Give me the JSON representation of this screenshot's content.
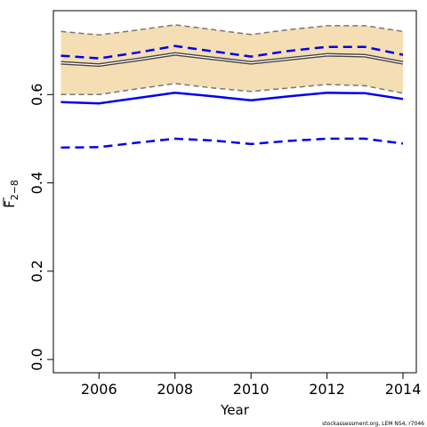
{
  "chart_data": {
    "type": "line",
    "xlabel": "Year",
    "ylabel": {
      "main": "F",
      "sub": "2−8"
    },
    "xlim": [
      2004.8,
      2014.35
    ],
    "ylim": [
      -0.03,
      0.79
    ],
    "x_ticks": [
      2006,
      2008,
      2010,
      2012,
      2014
    ],
    "x_tick_labels": [
      "2006",
      "2008",
      "2010",
      "2012",
      "2014"
    ],
    "y_ticks": [
      0.0,
      0.2,
      0.4,
      0.6
    ],
    "y_tick_labels": [
      "0.0",
      "0.2",
      "0.4",
      "0.6"
    ],
    "grid": false,
    "x": [
      2005,
      2006,
      2007,
      2008,
      2009,
      2010,
      2011,
      2012,
      2013,
      2014
    ],
    "band": {
      "color": "#f5deb3",
      "border_color": "#777777",
      "upper": [
        0.743,
        0.735,
        0.746,
        0.758,
        0.747,
        0.736,
        0.747,
        0.756,
        0.756,
        0.743
      ],
      "lower": [
        0.6,
        0.6,
        0.613,
        0.625,
        0.615,
        0.607,
        0.615,
        0.623,
        0.62,
        0.603
      ]
    },
    "series": [
      {
        "values": [
          0.672,
          0.667,
          0.679,
          0.692,
          0.682,
          0.672,
          0.681,
          0.69,
          0.688,
          0.672
        ],
        "color": "#444444",
        "style": "double"
      },
      {
        "values": [
          0.583,
          0.58,
          0.592,
          0.604,
          0.596,
          0.587,
          0.596,
          0.604,
          0.603,
          0.59
        ],
        "color": "#0000ee",
        "style": "solid"
      },
      {
        "values": [
          0.688,
          0.682,
          0.695,
          0.71,
          0.698,
          0.686,
          0.699,
          0.708,
          0.708,
          0.69
        ],
        "color": "#0000ee",
        "style": "dashed"
      },
      {
        "values": [
          0.48,
          0.481,
          0.491,
          0.5,
          0.496,
          0.488,
          0.495,
          0.5,
          0.5,
          0.489
        ],
        "color": "#0000ee",
        "style": "dashed"
      }
    ],
    "footnote": "stockassessment.org, LEM NS4, r7046"
  }
}
